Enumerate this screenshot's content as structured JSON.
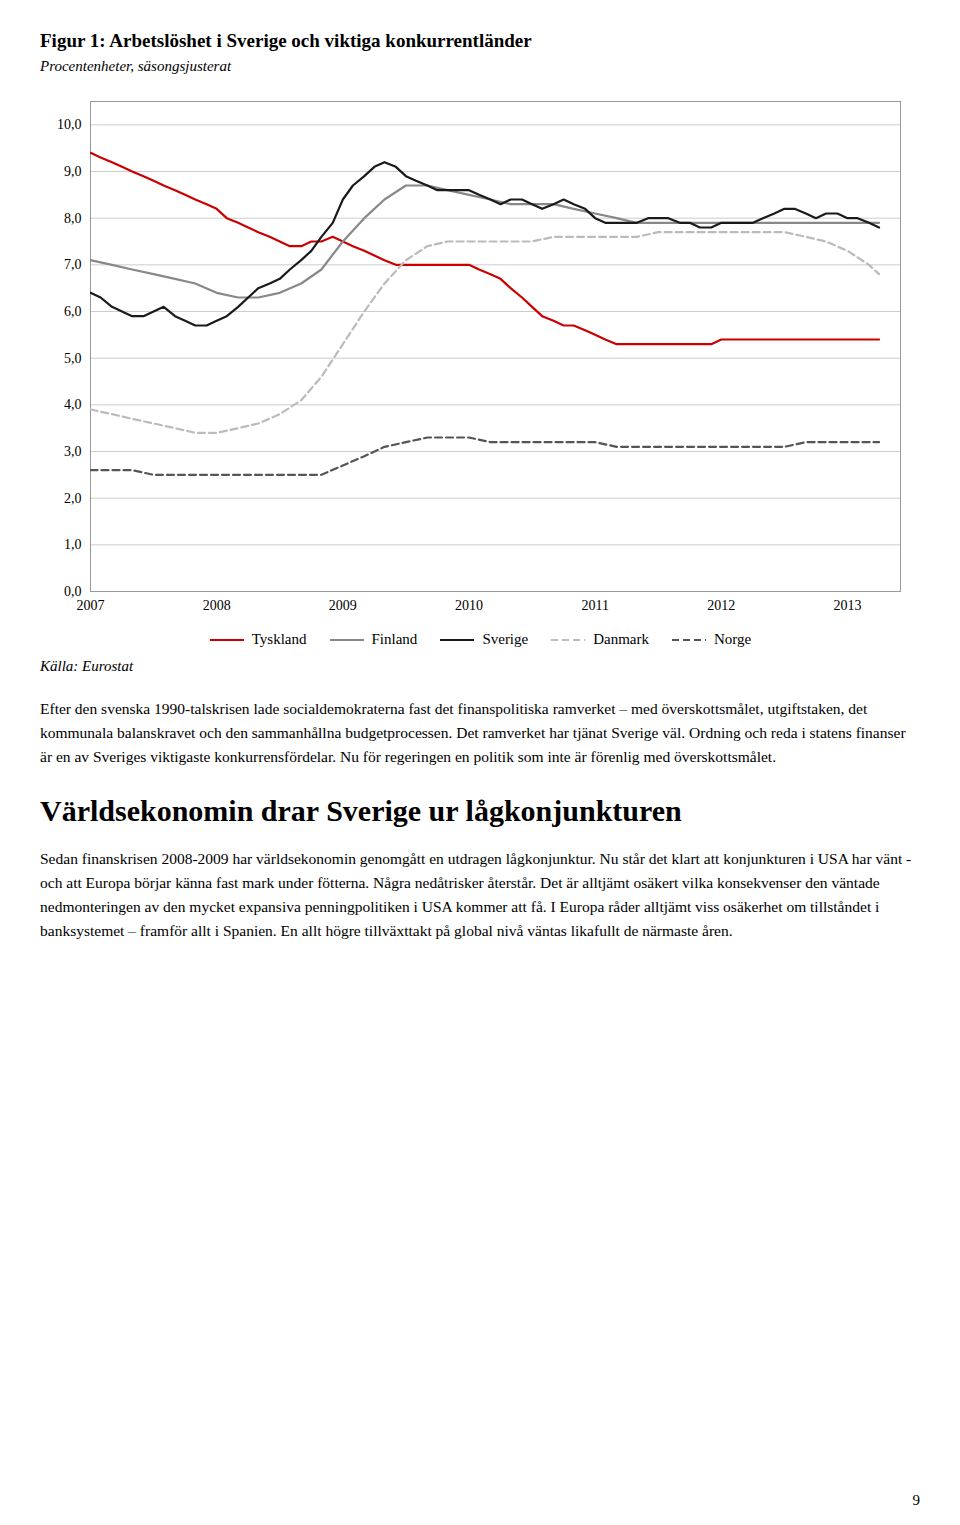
{
  "chart_data": {
    "type": "line",
    "title": "Figur 1: Arbetslöshet i Sverige och viktiga konkurrentländer",
    "subtitle": "Procentenheter, säsongsjusterat",
    "source": "Källa: Eurostat",
    "xlim": [
      2007,
      2013.42
    ],
    "xticks": [
      2007,
      2008,
      2009,
      2010,
      2011,
      2012,
      2013
    ],
    "ylim": [
      0.0,
      10.5
    ],
    "yticks": [
      {
        "value": 0.0,
        "label": "0,0"
      },
      {
        "value": 1.0,
        "label": "1,0"
      },
      {
        "value": 2.0,
        "label": "2,0"
      },
      {
        "value": 3.0,
        "label": "3,0"
      },
      {
        "value": 4.0,
        "label": "4,0"
      },
      {
        "value": 5.0,
        "label": "5,0"
      },
      {
        "value": 6.0,
        "label": "6,0"
      },
      {
        "value": 7.0,
        "label": "7,0"
      },
      {
        "value": 8.0,
        "label": "8,0"
      },
      {
        "value": 9.0,
        "label": "9,0"
      },
      {
        "value": 10.0,
        "label": "10,0"
      }
    ],
    "grid": true,
    "legend": "bottom",
    "series": [
      {
        "name": "Tyskland",
        "color": "#cc0000",
        "line_style": "solid",
        "x": [
          2007.0,
          2007.08,
          2007.17,
          2007.25,
          2007.33,
          2007.42,
          2007.5,
          2007.58,
          2007.67,
          2007.75,
          2007.83,
          2007.92,
          2008.0,
          2008.08,
          2008.17,
          2008.25,
          2008.33,
          2008.42,
          2008.5,
          2008.58,
          2008.67,
          2008.75,
          2008.83,
          2008.92,
          2009.0,
          2009.08,
          2009.17,
          2009.25,
          2009.33,
          2009.42,
          2009.5,
          2009.58,
          2009.67,
          2009.75,
          2009.83,
          2009.92,
          2010.0,
          2010.08,
          2010.17,
          2010.25,
          2010.33,
          2010.42,
          2010.5,
          2010.58,
          2010.67,
          2010.75,
          2010.83,
          2010.92,
          2011.0,
          2011.08,
          2011.17,
          2011.25,
          2011.33,
          2011.42,
          2011.5,
          2011.58,
          2011.67,
          2011.75,
          2011.83,
          2011.92,
          2012.0,
          2012.08,
          2012.17,
          2012.25,
          2012.33,
          2012.42,
          2012.5,
          2012.58,
          2012.67,
          2012.75,
          2012.83,
          2012.92,
          2013.0,
          2013.08,
          2013.17,
          2013.25
        ],
        "values": [
          9.4,
          9.3,
          9.2,
          9.1,
          9.0,
          8.9,
          8.8,
          8.7,
          8.6,
          8.5,
          8.4,
          8.3,
          8.2,
          8.0,
          7.9,
          7.8,
          7.7,
          7.6,
          7.5,
          7.4,
          7.4,
          7.5,
          7.5,
          7.6,
          7.5,
          7.4,
          7.3,
          7.2,
          7.1,
          7.0,
          7.0,
          7.0,
          7.0,
          7.0,
          7.0,
          7.0,
          7.0,
          6.9,
          6.8,
          6.7,
          6.5,
          6.3,
          6.1,
          5.9,
          5.8,
          5.7,
          5.7,
          5.6,
          5.5,
          5.4,
          5.3,
          5.3,
          5.3,
          5.3,
          5.3,
          5.3,
          5.3,
          5.3,
          5.3,
          5.3,
          5.4,
          5.4,
          5.4,
          5.4,
          5.4,
          5.4,
          5.4,
          5.4,
          5.4,
          5.4,
          5.4,
          5.4,
          5.4,
          5.4,
          5.4,
          5.4
        ]
      },
      {
        "name": "Finland",
        "color": "#888888",
        "line_style": "solid",
        "x": [
          2007.0,
          2007.17,
          2007.33,
          2007.5,
          2007.67,
          2007.83,
          2008.0,
          2008.17,
          2008.33,
          2008.5,
          2008.67,
          2008.83,
          2009.0,
          2009.17,
          2009.33,
          2009.5,
          2009.67,
          2009.83,
          2010.0,
          2010.17,
          2010.33,
          2010.5,
          2010.67,
          2010.83,
          2011.0,
          2011.17,
          2011.33,
          2011.5,
          2011.67,
          2011.83,
          2012.0,
          2012.17,
          2012.33,
          2012.5,
          2012.67,
          2012.83,
          2013.0,
          2013.17,
          2013.25
        ],
        "values": [
          7.1,
          7.0,
          6.9,
          6.8,
          6.7,
          6.6,
          6.4,
          6.3,
          6.3,
          6.4,
          6.6,
          6.9,
          7.5,
          8.0,
          8.4,
          8.7,
          8.7,
          8.6,
          8.5,
          8.4,
          8.3,
          8.3,
          8.3,
          8.2,
          8.1,
          8.0,
          7.9,
          7.9,
          7.9,
          7.9,
          7.9,
          7.9,
          7.9,
          7.9,
          7.9,
          7.9,
          7.9,
          7.9,
          7.9
        ]
      },
      {
        "name": "Sverige",
        "color": "#1a1a1a",
        "line_style": "solid",
        "x": [
          2007.0,
          2007.08,
          2007.17,
          2007.25,
          2007.33,
          2007.42,
          2007.5,
          2007.58,
          2007.67,
          2007.75,
          2007.83,
          2007.92,
          2008.0,
          2008.08,
          2008.17,
          2008.25,
          2008.33,
          2008.42,
          2008.5,
          2008.58,
          2008.67,
          2008.75,
          2008.83,
          2008.92,
          2009.0,
          2009.08,
          2009.17,
          2009.25,
          2009.33,
          2009.42,
          2009.5,
          2009.58,
          2009.67,
          2009.75,
          2009.83,
          2009.92,
          2010.0,
          2010.08,
          2010.17,
          2010.25,
          2010.33,
          2010.42,
          2010.5,
          2010.58,
          2010.67,
          2010.75,
          2010.83,
          2010.92,
          2011.0,
          2011.08,
          2011.17,
          2011.25,
          2011.33,
          2011.42,
          2011.5,
          2011.58,
          2011.67,
          2011.75,
          2011.83,
          2011.92,
          2012.0,
          2012.08,
          2012.17,
          2012.25,
          2012.33,
          2012.42,
          2012.5,
          2012.58,
          2012.67,
          2012.75,
          2012.83,
          2012.92,
          2013.0,
          2013.08,
          2013.17,
          2013.25
        ],
        "values": [
          6.4,
          6.3,
          6.1,
          6.0,
          5.9,
          5.9,
          6.0,
          6.1,
          5.9,
          5.8,
          5.7,
          5.7,
          5.8,
          5.9,
          6.1,
          6.3,
          6.5,
          6.6,
          6.7,
          6.9,
          7.1,
          7.3,
          7.6,
          7.9,
          8.4,
          8.7,
          8.9,
          9.1,
          9.2,
          9.1,
          8.9,
          8.8,
          8.7,
          8.6,
          8.6,
          8.6,
          8.6,
          8.5,
          8.4,
          8.3,
          8.4,
          8.4,
          8.3,
          8.2,
          8.3,
          8.4,
          8.3,
          8.2,
          8.0,
          7.9,
          7.9,
          7.9,
          7.9,
          8.0,
          8.0,
          8.0,
          7.9,
          7.9,
          7.8,
          7.8,
          7.9,
          7.9,
          7.9,
          7.9,
          8.0,
          8.1,
          8.2,
          8.2,
          8.1,
          8.0,
          8.1,
          8.1,
          8.0,
          8.0,
          7.9,
          7.8
        ]
      },
      {
        "name": "Danmark",
        "color": "#bbbbbb",
        "line_style": "dashed",
        "x": [
          2007.0,
          2007.17,
          2007.33,
          2007.5,
          2007.67,
          2007.83,
          2008.0,
          2008.17,
          2008.33,
          2008.5,
          2008.67,
          2008.83,
          2009.0,
          2009.17,
          2009.33,
          2009.5,
          2009.67,
          2009.83,
          2010.0,
          2010.17,
          2010.33,
          2010.5,
          2010.67,
          2010.83,
          2011.0,
          2011.17,
          2011.33,
          2011.5,
          2011.67,
          2011.83,
          2012.0,
          2012.17,
          2012.33,
          2012.5,
          2012.67,
          2012.83,
          2013.0,
          2013.17,
          2013.25
        ],
        "values": [
          3.9,
          3.8,
          3.7,
          3.6,
          3.5,
          3.4,
          3.4,
          3.5,
          3.6,
          3.8,
          4.1,
          4.6,
          5.3,
          6.0,
          6.6,
          7.1,
          7.4,
          7.5,
          7.5,
          7.5,
          7.5,
          7.5,
          7.6,
          7.6,
          7.6,
          7.6,
          7.6,
          7.7,
          7.7,
          7.7,
          7.7,
          7.7,
          7.7,
          7.7,
          7.6,
          7.5,
          7.3,
          7.0,
          6.8
        ]
      },
      {
        "name": "Norge",
        "color": "#555555",
        "line_style": "dashed",
        "x": [
          2007.0,
          2007.17,
          2007.33,
          2007.5,
          2007.67,
          2007.83,
          2008.0,
          2008.17,
          2008.33,
          2008.5,
          2008.67,
          2008.83,
          2009.0,
          2009.17,
          2009.33,
          2009.5,
          2009.67,
          2009.83,
          2010.0,
          2010.17,
          2010.33,
          2010.5,
          2010.67,
          2010.83,
          2011.0,
          2011.17,
          2011.33,
          2011.5,
          2011.67,
          2011.83,
          2012.0,
          2012.17,
          2012.33,
          2012.5,
          2012.67,
          2012.83,
          2013.0,
          2013.17,
          2013.25
        ],
        "values": [
          2.6,
          2.6,
          2.6,
          2.5,
          2.5,
          2.5,
          2.5,
          2.5,
          2.5,
          2.5,
          2.5,
          2.5,
          2.7,
          2.9,
          3.1,
          3.2,
          3.3,
          3.3,
          3.3,
          3.2,
          3.2,
          3.2,
          3.2,
          3.2,
          3.2,
          3.1,
          3.1,
          3.1,
          3.1,
          3.1,
          3.1,
          3.1,
          3.1,
          3.1,
          3.2,
          3.2,
          3.2,
          3.2,
          3.2
        ]
      }
    ]
  },
  "body": [
    {
      "type": "paragraph",
      "text": "Efter den svenska 1990-talskrisen lade socialdemokraterna fast det finanspolitiska ramverket – med överskottsmålet, utgiftstaken, det kommunala balanskravet och den sammanhållna budgetprocessen. Det ramverket har tjänat Sverige väl. Ordning och reda i statens finanser är en av Sveriges viktigaste konkurrensfördelar. Nu för regeringen en politik som inte är förenlig med överskottsmålet."
    },
    {
      "type": "heading",
      "text": "Världsekonomin drar Sverige ur lågkonjunkturen"
    },
    {
      "type": "paragraph",
      "text": "Sedan finanskrisen 2008-2009 har världsekonomin genomgått en utdragen lågkonjunktur. Nu står det klart att konjunkturen i USA har vänt - och att Europa börjar känna fast mark under fötterna. Några nedåtrisker återstår. Det är alltjämt osäkert vilka konsekvenser den väntade nedmonteringen av den mycket expansiva penningpolitiken i USA kommer att få. I Europa råder alltjämt viss osäkerhet om tillståndet i banksystemet – framför allt i Spanien. En allt högre tillväxttakt på global nivå väntas likafullt de närmaste åren."
    }
  ],
  "page_number": "9"
}
